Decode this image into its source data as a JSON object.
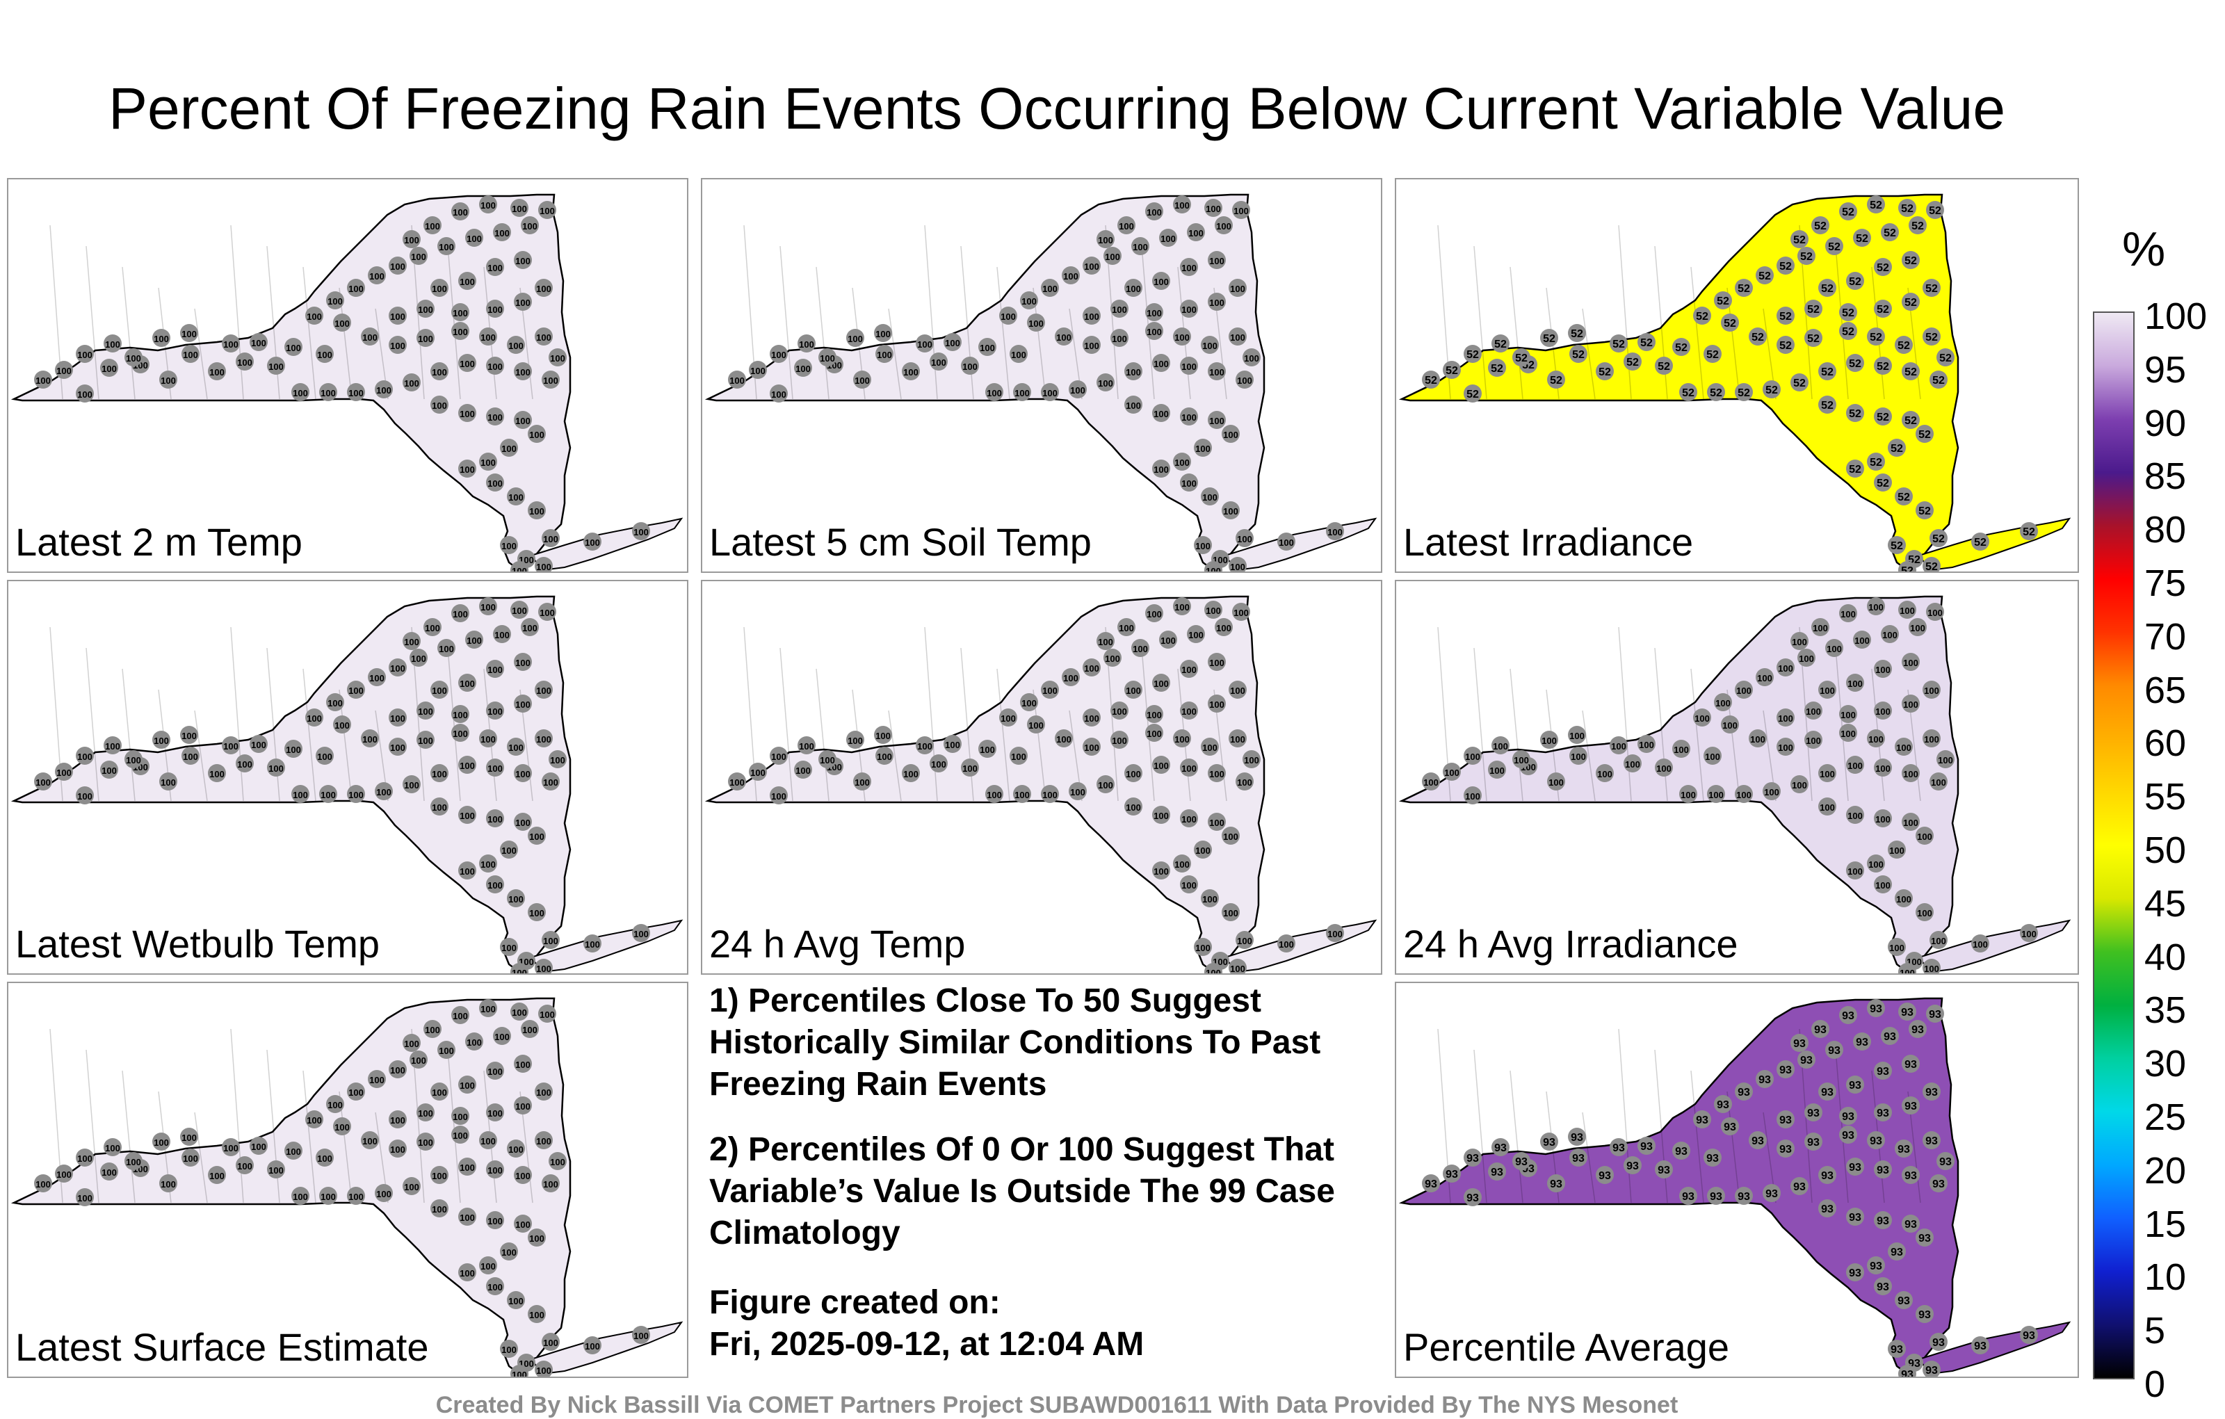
{
  "title": "Percent Of Freezing Rain Events Occurring Below Current Variable Value",
  "panels": [
    {
      "label": "Latest 2 m Temp",
      "value": "100",
      "fill": "#efe9f3"
    },
    {
      "label": "Latest 5 cm Soil Temp",
      "value": "100",
      "fill": "#efe9f3"
    },
    {
      "label": "Latest Irradiance",
      "value": "52",
      "fill": "#ffff00"
    },
    {
      "label": "Latest Wetbulb Temp",
      "value": "100",
      "fill": "#efe9f3"
    },
    {
      "label": "24 h Avg Temp",
      "value": "100",
      "fill": "#efe9f3"
    },
    {
      "label": "24 h Avg Irradiance",
      "value": "100",
      "fill": "#e6dcef"
    },
    {
      "label": "Latest Surface Estimate",
      "value": "100",
      "fill": "#efe9f3"
    },
    {
      "label": "Percentile Average",
      "value": "93",
      "fill": "#8e4fb4"
    }
  ],
  "notes": [
    "1) Percentiles Close To 50 Suggest Historically Similar Conditions To Past Freezing Rain Events",
    "2) Percentiles Of 0 Or 100 Suggest That Variable’s Value Is Outside The 99 Case Climatology"
  ],
  "figure_created_label": "Figure created on:",
  "figure_created_date": "Fri, 2025-09-12, at 12:04 AM",
  "credit": "Created By Nick Bassill Via COMET Partners Project SUBAWD001611 With Data Provided By The NYS Mesonet",
  "legend": {
    "unit": "%",
    "ticks": [
      "100",
      "95",
      "90",
      "85",
      "80",
      "75",
      "70",
      "65",
      "60",
      "55",
      "50",
      "45",
      "40",
      "35",
      "30",
      "25",
      "20",
      "15",
      "10",
      "5",
      "0"
    ],
    "colors": [
      "#efe9f3",
      "#c9a9dd",
      "#7d3fb0",
      "#4b1a8c",
      "#a8122a",
      "#ff0000",
      "#ff3300",
      "#ff8a00",
      "#ffb000",
      "#ffd800",
      "#ffff00",
      "#d8e800",
      "#40c020",
      "#00b040",
      "#00d0a0",
      "#00d8e8",
      "#00a8ff",
      "#1060ff",
      "#1020d0",
      "#101070",
      "#000000"
    ]
  }
}
